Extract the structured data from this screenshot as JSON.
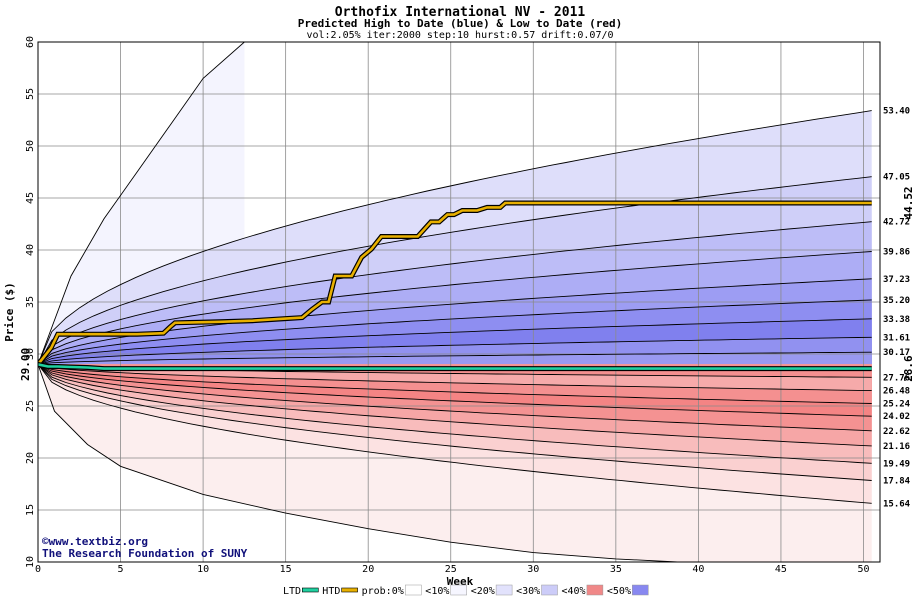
{
  "chart_data": {
    "type": "area",
    "title": "Orthofix International NV - 2011",
    "subtitle": "Predicted High to Date (blue) &  Low to Date (red)",
    "params": "vol:2.05% iter:2000 step:10 hurst:0.57 drift:0.07/0",
    "xlabel": "Week",
    "ylabel": "Price ($)",
    "xlim": [
      0,
      51
    ],
    "ylim": [
      10,
      60
    ],
    "x_ticks": [
      0,
      5,
      10,
      15,
      20,
      25,
      30,
      35,
      40,
      45,
      50
    ],
    "y_ticks": [
      10,
      15,
      20,
      25,
      30,
      35,
      40,
      45,
      50,
      55,
      60
    ],
    "grid": true,
    "start_price": 29.0,
    "start_label": "29.00",
    "x_end": 50.5,
    "upper_end_values": [
      53.4,
      47.05,
      42.72,
      39.86,
      37.23,
      35.2,
      33.38,
      31.61,
      30.17
    ],
    "upper_end_labels": [
      "53.40",
      "47.05",
      "42.72",
      "39.86",
      "37.23",
      "35.20",
      "33.38",
      "31.61",
      "30.17"
    ],
    "lower_end_values": [
      27.76,
      26.48,
      25.24,
      24.02,
      22.62,
      21.16,
      19.49,
      17.84,
      15.64
    ],
    "lower_end_labels": [
      "27.76",
      "26.48",
      "25.24",
      "24.02",
      "22.62",
      "21.16",
      "19.49",
      "17.84",
      "15.64"
    ],
    "upper_extreme": {
      "x": [
        0,
        2,
        4,
        6,
        8,
        10,
        12.5
      ],
      "y": [
        29,
        37.5,
        43,
        47.5,
        52,
        56.5,
        60
      ]
    },
    "lower_extreme": {
      "x": [
        0,
        1,
        3,
        5,
        10,
        15,
        20,
        25,
        30,
        35,
        40,
        45,
        50.5
      ],
      "y": [
        29,
        24.5,
        21.3,
        19.2,
        16.5,
        14.7,
        13.2,
        11.9,
        10.9,
        10.3,
        9.9,
        9.6,
        9.4
      ]
    },
    "upper_fill_colors": [
      "#f4f4fe",
      "#dedefa",
      "#cfcff8",
      "#bdbdf7",
      "#adadf5",
      "#9d9df3",
      "#8e8ef1",
      "#8080ee",
      "#9191f0"
    ],
    "lower_fill_colors": [
      "#fceeee",
      "#fce2e2",
      "#fad0d0",
      "#f8bcbc",
      "#f6a6a6",
      "#f49292",
      "#f48484",
      "#f49090",
      "#f6aaaa"
    ],
    "series": [
      {
        "name": "HTD",
        "color": "#e8b000",
        "x": [
          0,
          0.8,
          1.2,
          2.5,
          4,
          6,
          7.6,
          8,
          8.3,
          11,
          13,
          15,
          16,
          16.6,
          17.2,
          17.6,
          18,
          18.4,
          19,
          19.6,
          20.2,
          20.8,
          21,
          21.6,
          22,
          23,
          23.4,
          23.8,
          24.3,
          24.8,
          25.2,
          25.7,
          26.2,
          26.6,
          27.2,
          27.5,
          28,
          28.3,
          30,
          35,
          40,
          45,
          50.5
        ],
        "y": [
          29,
          30.6,
          31.9,
          31.9,
          31.9,
          31.9,
          32.0,
          32.6,
          33.0,
          33.1,
          33.2,
          33.4,
          33.5,
          34.3,
          35.0,
          35.0,
          37.5,
          37.5,
          37.5,
          39.3,
          40.1,
          41.3,
          41.3,
          41.3,
          41.3,
          41.3,
          42.0,
          42.7,
          42.7,
          43.4,
          43.4,
          43.8,
          43.8,
          43.8,
          44.1,
          44.1,
          44.1,
          44.52,
          44.52,
          44.52,
          44.52,
          44.52,
          44.52
        ],
        "end_label": "44.52"
      },
      {
        "name": "LTD",
        "color": "#20d0a0",
        "x": [
          0,
          0.6,
          1.2,
          2,
          3,
          4,
          10,
          20,
          30,
          40,
          50.5
        ],
        "y": [
          29,
          28.8,
          28.8,
          28.75,
          28.7,
          28.6,
          28.6,
          28.6,
          28.6,
          28.6,
          28.6
        ],
        "end_label": "28.6"
      }
    ],
    "credits": [
      "©www.textbiz.org",
      "The Research Foundation of SUNY"
    ],
    "legend": [
      {
        "label": "LTD",
        "swatch": "#20d0a0",
        "kind": "line"
      },
      {
        "label": "HTD",
        "swatch": "#e8b000",
        "kind": "line"
      },
      {
        "label": "prob:0%",
        "swatch": "#ffffff",
        "kind": "box"
      },
      {
        "label": "<10%",
        "swatch": "#f6f6ff",
        "kind": "box"
      },
      {
        "label": "<20%",
        "swatch": "#e2e2fc",
        "kind": "box"
      },
      {
        "label": "<30%",
        "swatch": "#ccccf8",
        "kind": "box"
      },
      {
        "label": "<40%",
        "swatch": "#f08888",
        "kind": "box"
      },
      {
        "label": "<50%",
        "swatch": "#8888f0",
        "kind": "box"
      }
    ]
  }
}
